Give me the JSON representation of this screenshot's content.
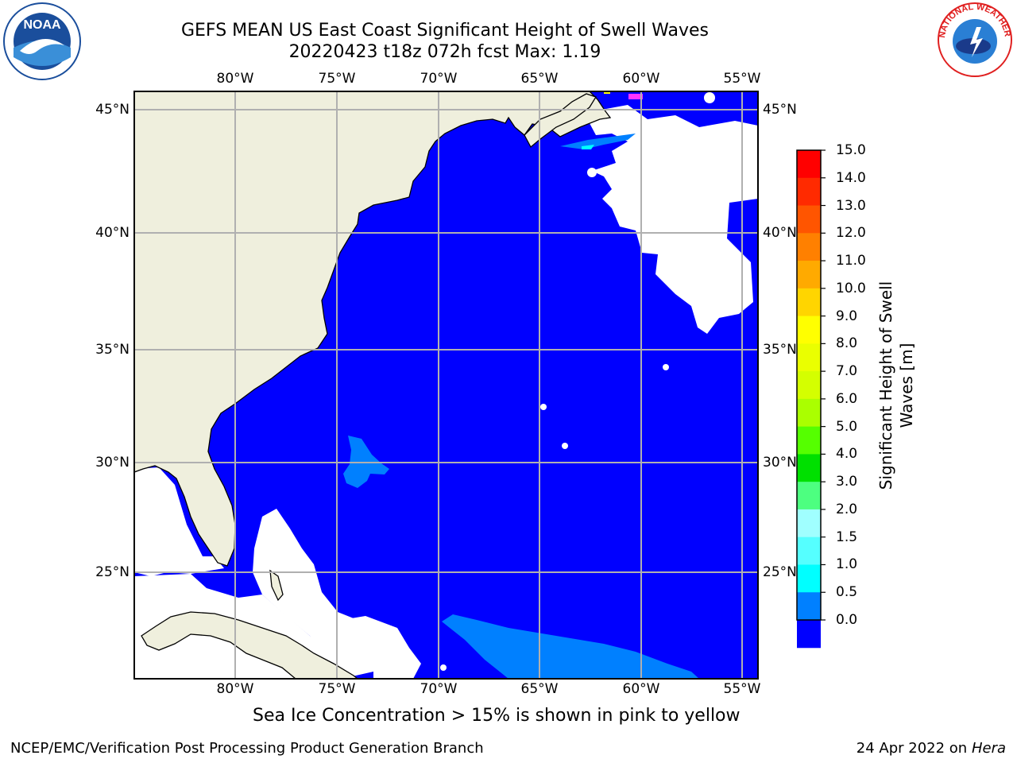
{
  "title": {
    "line1": "GEFS MEAN US East Coast Significant Height of Swell Waves",
    "line2": "20220423 t18z 072h fcst   Max: 1.19"
  },
  "map": {
    "lon_labels": [
      "80°W",
      "75°W",
      "70°W",
      "65°W",
      "60°W",
      "55°W"
    ],
    "lat_labels": [
      "45°N",
      "40°N",
      "35°N",
      "30°N",
      "25°N"
    ],
    "lon_values": [
      -80,
      -75,
      -70,
      -65,
      -60,
      -55
    ],
    "lat_values": [
      45,
      40,
      35,
      30,
      25
    ],
    "colors": {
      "land": "#efefdd",
      "ocean_0": "#0000ff",
      "ocean_05": "#0080ff",
      "gridline": "#b0b0b0",
      "sea_ice": "#ff33ff"
    }
  },
  "colorbar": {
    "label_line1": "Significant Height of Swell",
    "label_line2": "Waves [m]",
    "ticks": [
      "15.0",
      "14.0",
      "13.0",
      "12.0",
      "11.0",
      "10.0",
      "9.0",
      "8.0",
      "7.0",
      "6.0",
      "5.0",
      "4.0",
      "3.0",
      "2.0",
      "1.5",
      "1.0",
      "0.5",
      "0.0"
    ],
    "colors": [
      "#ff0000",
      "#ff2a00",
      "#ff5500",
      "#ff8000",
      "#ffaa00",
      "#ffd500",
      "#ffff00",
      "#eaff00",
      "#d4ff00",
      "#aaff00",
      "#55ff00",
      "#00e000",
      "#4dff80",
      "#a0ffff",
      "#55ffff",
      "#00ffff",
      "#0080ff",
      "#0000ff"
    ]
  },
  "note": "Sea Ice Concentration > 15% is shown in pink to yellow",
  "footer": {
    "credit": "NCEP/EMC/Verification Post Processing Product Generation Branch",
    "date_prefix": "24 Apr 2022 on ",
    "date_host": "Hera"
  },
  "logos": {
    "left": {
      "icon": "noaa-logo",
      "text": "NOAA"
    },
    "right": {
      "icon": "national-weather-service-logo",
      "text": "NATIONAL WEATHER SERVICE"
    }
  }
}
